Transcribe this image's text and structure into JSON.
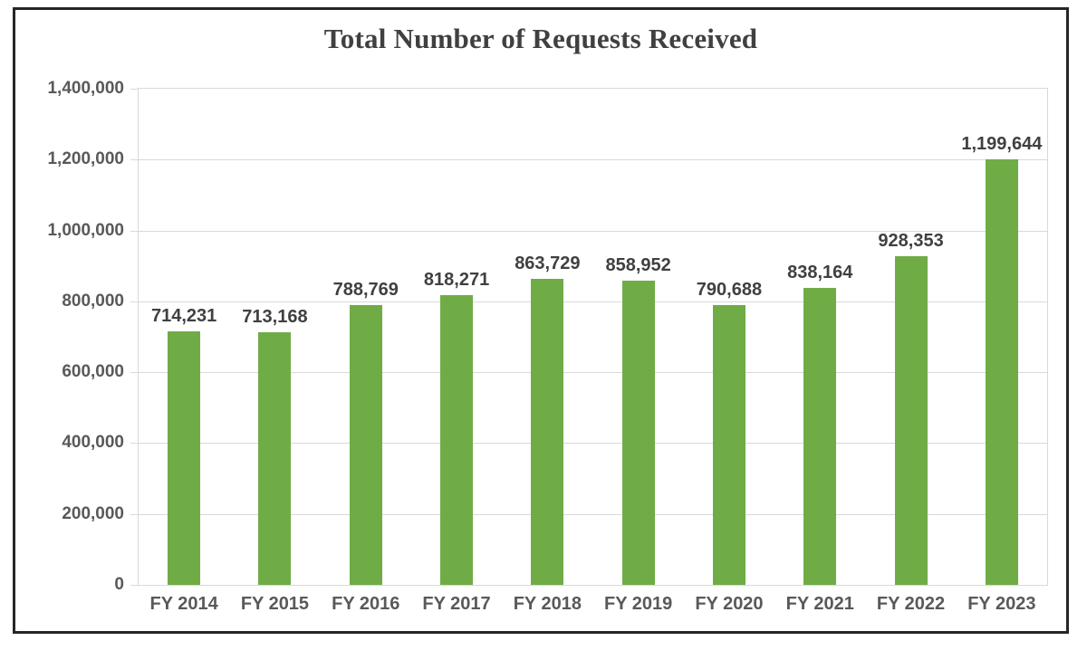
{
  "chart_data": {
    "type": "bar",
    "title": "Total Number of Requests Received",
    "categories": [
      "FY 2014",
      "FY 2015",
      "FY 2016",
      "FY 2017",
      "FY 2018",
      "FY 2019",
      "FY 2020",
      "FY 2021",
      "FY 2022",
      "FY 2023"
    ],
    "values": [
      714231,
      713168,
      788769,
      818271,
      863729,
      858952,
      790688,
      838164,
      928353,
      1199644
    ],
    "value_labels": [
      "714,231",
      "713,168",
      "788,769",
      "818,271",
      "863,729",
      "858,952",
      "790,688",
      "838,164",
      "928,353",
      "1,199,644"
    ],
    "xlabel": "",
    "ylabel": "",
    "ylim": [
      0,
      1400000
    ],
    "y_tick_step": 200000,
    "y_tick_labels": [
      "0",
      "200,000",
      "400,000",
      "600,000",
      "800,000",
      "1,000,000",
      "1,200,000",
      "1,400,000"
    ],
    "grid": "horizontal",
    "legend_position": "none",
    "colors": {
      "bar": "#6fac46",
      "gridline": "#d9d9d9",
      "axis_text": "#595959",
      "data_label": "#404040",
      "title_text": "#404040",
      "frame_border": "#262626"
    }
  }
}
